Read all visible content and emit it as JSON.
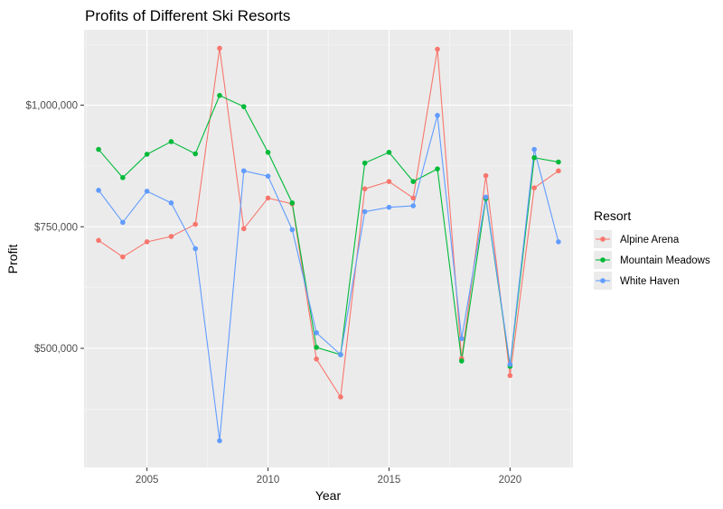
{
  "chart_data": {
    "type": "line",
    "title": "Profits of Different Ski Resorts",
    "xlabel": "Year",
    "ylabel": "Profit",
    "xlim": [
      2002.4,
      2022.6
    ],
    "ylim": [
      255000,
      1155000
    ],
    "x_ticks": [
      2005,
      2010,
      2015,
      2020
    ],
    "x_tick_labels": [
      "2005",
      "2010",
      "2015",
      "2020"
    ],
    "y_ticks": [
      500000,
      750000,
      1000000
    ],
    "y_tick_labels": [
      "$500,000",
      "$750,000",
      "$1,000,000"
    ],
    "grid": true,
    "legend": {
      "title": "Resort",
      "position": "right"
    },
    "x": [
      2003,
      2004,
      2005,
      2006,
      2007,
      2008,
      2009,
      2010,
      2011,
      2012,
      2013,
      2014,
      2015,
      2016,
      2017,
      2018,
      2019,
      2020,
      2021,
      2022
    ],
    "series": [
      {
        "name": "Alpine Arena",
        "color": "#F8766D",
        "values": [
          722000,
          688000,
          719000,
          730000,
          755000,
          1117000,
          746000,
          809000,
          797000,
          478000,
          400000,
          828000,
          843000,
          809000,
          1115000,
          479000,
          855000,
          444000,
          830000,
          865000
        ]
      },
      {
        "name": "Mountain Meadows",
        "color": "#00BA38",
        "values": [
          909000,
          851000,
          899000,
          925000,
          900000,
          1020000,
          997000,
          903000,
          799000,
          502000,
          487000,
          881000,
          903000,
          843000,
          869000,
          474000,
          808000,
          463000,
          892000,
          883000
        ]
      },
      {
        "name": "White Haven",
        "color": "#619CFF",
        "values": [
          825000,
          759000,
          823000,
          799000,
          705000,
          310000,
          865000,
          854000,
          744000,
          532000,
          487000,
          781000,
          790000,
          793000,
          979000,
          520000,
          811000,
          467000,
          909000,
          719000
        ]
      }
    ]
  }
}
